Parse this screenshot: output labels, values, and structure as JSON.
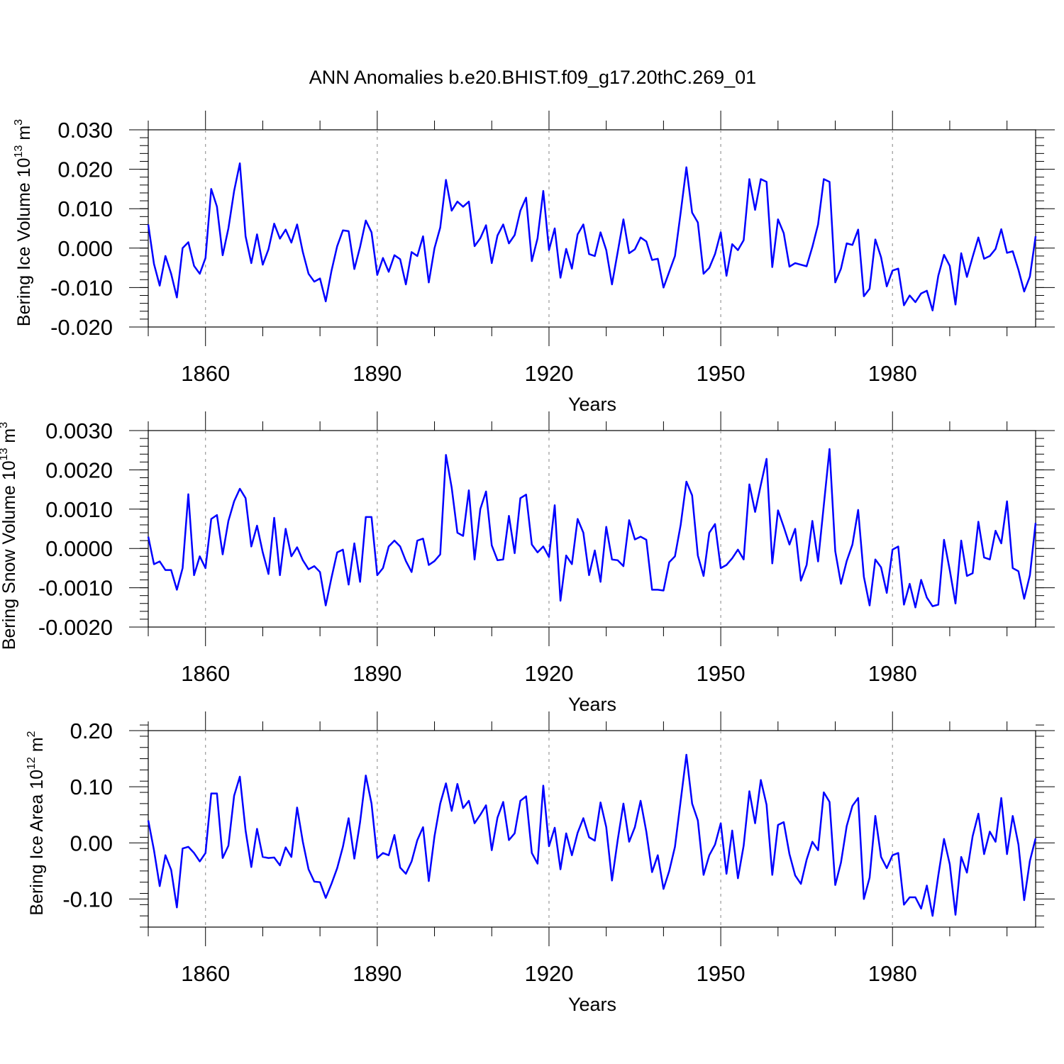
{
  "title": "ANN Anomalies b.e20.BHIST.f09_g17.20thC.269_01",
  "line_color": "#0000ff",
  "chart_data": [
    {
      "type": "line",
      "ylabel": "Bering Ice Volume 10",
      "ylabel_sup": "13",
      "ylabel_unit": "m",
      "ylabel_unit_sup": "3",
      "xlabel": "Years",
      "xlim": [
        1850,
        2005
      ],
      "ylim": [
        -0.02,
        0.03
      ],
      "major_ticks": [
        -0.02,
        -0.01,
        0.0,
        0.01,
        0.02,
        0.03
      ],
      "tick_labels": [
        "-0.020",
        "-0.010",
        "0.000",
        "0.010",
        "0.020",
        "0.030"
      ],
      "minor_step": 0.002,
      "x_ticks": [
        1860,
        1890,
        1920,
        1950,
        1980
      ],
      "x_tick_labels": [
        "1860",
        "1890",
        "1920",
        "1950",
        "1980"
      ],
      "x_start": 1850,
      "values": [
        0.006,
        -0.004,
        -0.0095,
        -0.002,
        -0.0065,
        -0.0125,
        0.0,
        0.0015,
        -0.0045,
        -0.0065,
        -0.0025,
        0.015,
        0.0105,
        -0.0018,
        0.005,
        0.0145,
        0.0215,
        0.003,
        -0.0038,
        0.0035,
        -0.0042,
        -0.0003,
        0.0062,
        0.0024,
        0.0047,
        0.0014,
        0.006,
        -0.001,
        -0.0065,
        -0.0085,
        -0.0077,
        -0.0135,
        -0.0058,
        0.0005,
        0.0045,
        0.0043,
        -0.0053,
        0.0003,
        0.007,
        0.004,
        -0.0068,
        -0.0025,
        -0.006,
        -0.0018,
        -0.0028,
        -0.0092,
        -0.001,
        -0.002,
        0.003,
        -0.0087,
        0.0,
        0.0052,
        0.0173,
        0.0095,
        0.0118,
        0.0105,
        0.0118,
        0.0005,
        0.0025,
        0.0058,
        -0.0038,
        0.0032,
        0.006,
        0.0012,
        0.0033,
        0.0095,
        0.0128,
        -0.0033,
        0.0025,
        0.0145,
        -0.0005,
        0.005,
        -0.0075,
        -0.0002,
        -0.0052,
        0.0035,
        0.006,
        -0.0015,
        -0.002,
        0.004,
        -0.0005,
        -0.0092,
        -0.001,
        0.0073,
        -0.0013,
        -0.0003,
        0.0027,
        0.0017,
        -0.003,
        -0.0027,
        -0.01,
        -0.006,
        -0.002,
        0.009,
        0.0205,
        0.009,
        0.0065,
        -0.0065,
        -0.005,
        -0.0015,
        0.004,
        -0.007,
        0.001,
        -0.0005,
        0.002,
        0.0175,
        0.0097,
        0.0175,
        0.0168,
        -0.0048,
        0.0073,
        0.0038,
        -0.0047,
        -0.0038,
        -0.0042,
        -0.0046,
        0.0003,
        0.006,
        0.0175,
        0.0168,
        -0.0087,
        -0.0052,
        0.0012,
        0.0008,
        0.0047,
        -0.0122,
        -0.0103,
        0.0022,
        -0.0023,
        -0.0097,
        -0.0057,
        -0.0052,
        -0.0145,
        -0.012,
        -0.0137,
        -0.0115,
        -0.0108,
        -0.0158,
        -0.007,
        -0.0017,
        -0.0045,
        -0.0143,
        -0.0013,
        -0.0073,
        -0.0022,
        0.0027,
        -0.0027,
        -0.002,
        -0.0002,
        0.0048,
        -0.0012,
        -0.0008,
        -0.0055,
        -0.011,
        -0.0072,
        0.003
      ]
    },
    {
      "type": "line",
      "ylabel": "Bering Snow Volume 10",
      "ylabel_sup": "13",
      "ylabel_unit": "m",
      "ylabel_unit_sup": "3",
      "xlabel": "Years",
      "xlim": [
        1850,
        2005
      ],
      "ylim": [
        -0.002,
        0.003
      ],
      "major_ticks": [
        -0.002,
        -0.001,
        0.0,
        0.001,
        0.002,
        0.003
      ],
      "tick_labels": [
        "-0.0020",
        "-0.0010",
        "0.0000",
        "0.0010",
        "0.0020",
        "0.0030"
      ],
      "minor_step": 0.0002,
      "x_ticks": [
        1860,
        1890,
        1920,
        1950,
        1980
      ],
      "x_tick_labels": [
        "1860",
        "1890",
        "1920",
        "1950",
        "1980"
      ],
      "x_start": 1850,
      "values": [
        0.0003,
        -0.0004,
        -0.00033,
        -0.00055,
        -0.00055,
        -0.00105,
        -0.0005,
        0.00138,
        -0.00068,
        -0.0002,
        -0.0005,
        0.00075,
        0.00085,
        -0.00015,
        0.0007,
        0.0012,
        0.00152,
        0.00128,
        5e-05,
        0.00058,
        -0.0001,
        -0.00065,
        0.00078,
        -0.00068,
        0.0005,
        -0.0002,
        3e-05,
        -0.0003,
        -0.00053,
        -0.00045,
        -0.0006,
        -0.00145,
        -0.00075,
        -0.0001,
        -3e-05,
        -0.00092,
        0.00013,
        -0.00085,
        0.0008,
        0.0008,
        -0.00068,
        -0.0005,
        5e-05,
        0.0002,
        5e-05,
        -0.00032,
        -0.0006,
        0.0002,
        0.00025,
        -0.00042,
        -0.00032,
        -0.00015,
        0.00238,
        0.00155,
        0.0004,
        0.00032,
        0.00148,
        -0.00028,
        0.001,
        0.00145,
        8e-05,
        -0.0003,
        -0.00028,
        0.00083,
        -0.00012,
        0.00128,
        0.00137,
        0.0001,
        -0.0001,
        5e-05,
        -0.00022,
        0.0011,
        -0.00133,
        -0.00018,
        -0.0004,
        0.00075,
        0.0004,
        -0.00068,
        -5e-05,
        -0.00085,
        0.00055,
        -0.00028,
        -0.0003,
        -0.00045,
        0.00072,
        0.00023,
        0.0003,
        0.00022,
        -0.00105,
        -0.00105,
        -0.00107,
        -0.00035,
        -0.0002,
        0.0006,
        0.0017,
        0.00135,
        -0.00018,
        -0.0007,
        0.0004,
        0.00062,
        -0.0005,
        -0.00042,
        -0.00025,
        -3e-05,
        -0.00028,
        0.00163,
        0.00093,
        0.00162,
        0.00228,
        -0.00038,
        0.00097,
        0.00055,
        0.0001,
        0.0005,
        -0.00082,
        -0.00042,
        0.0007,
        -0.00033,
        0.0011,
        0.00253,
        -7e-05,
        -0.0009,
        -0.00032,
        0.0001,
        0.00098,
        -0.00072,
        -0.00145,
        -0.00028,
        -0.00048,
        -0.00113,
        -3e-05,
        5e-05,
        -0.00143,
        -0.0009,
        -0.0015,
        -0.0008,
        -0.00125,
        -0.00147,
        -0.00143,
        0.00022,
        -0.00055,
        -0.0014,
        0.0002,
        -0.0007,
        -0.00063,
        0.00068,
        -0.00023,
        -0.00028,
        0.00045,
        0.00013,
        0.0012,
        -0.0005,
        -0.00058,
        -0.00128,
        -0.00068,
        0.00065
      ]
    },
    {
      "type": "line",
      "ylabel": "Bering Ice Area 10",
      "ylabel_sup": "12",
      "ylabel_unit": "m",
      "ylabel_unit_sup": "2",
      "xlabel": "Years",
      "xlim": [
        1850,
        2005
      ],
      "ylim": [
        -0.15,
        0.2
      ],
      "major_ticks": [
        -0.1,
        0.0,
        0.1,
        0.2
      ],
      "tick_labels": [
        "-0.10",
        "0.00",
        "0.10",
        "0.20"
      ],
      "minor_step": 0.02,
      "x_ticks": [
        1860,
        1890,
        1920,
        1950,
        1980
      ],
      "x_tick_labels": [
        "1860",
        "1890",
        "1920",
        "1950",
        "1980"
      ],
      "x_start": 1850,
      "values": [
        0.04,
        -0.013,
        -0.077,
        -0.022,
        -0.048,
        -0.115,
        -0.01,
        -0.007,
        -0.018,
        -0.033,
        -0.018,
        0.088,
        0.088,
        -0.027,
        -0.005,
        0.084,
        0.118,
        0.022,
        -0.043,
        0.025,
        -0.025,
        -0.027,
        -0.026,
        -0.04,
        -0.008,
        -0.025,
        0.063,
        0.002,
        -0.047,
        -0.069,
        -0.07,
        -0.098,
        -0.073,
        -0.045,
        -0.007,
        0.044,
        -0.028,
        0.037,
        0.12,
        0.07,
        -0.027,
        -0.018,
        -0.022,
        0.014,
        -0.044,
        -0.055,
        -0.033,
        0.005,
        0.028,
        -0.068,
        0.012,
        0.07,
        0.106,
        0.057,
        0.105,
        0.062,
        0.075,
        0.035,
        0.05,
        0.067,
        -0.013,
        0.045,
        0.073,
        0.005,
        0.017,
        0.075,
        0.083,
        -0.018,
        -0.037,
        0.102,
        -0.006,
        0.027,
        -0.047,
        0.017,
        -0.022,
        0.018,
        0.044,
        0.01,
        0.004,
        0.072,
        0.028,
        -0.067,
        0.005,
        0.07,
        0.002,
        0.028,
        0.075,
        0.02,
        -0.052,
        -0.022,
        -0.082,
        -0.05,
        -0.007,
        0.075,
        0.157,
        0.07,
        0.04,
        -0.057,
        -0.022,
        -0.003,
        0.035,
        -0.055,
        0.022,
        -0.063,
        -0.005,
        0.092,
        0.035,
        0.112,
        0.068,
        -0.057,
        0.032,
        0.037,
        -0.02,
        -0.058,
        -0.073,
        -0.03,
        0.002,
        -0.013,
        0.09,
        0.073,
        -0.075,
        -0.035,
        0.03,
        0.066,
        0.08,
        -0.1,
        -0.062,
        0.048,
        -0.025,
        -0.045,
        -0.022,
        -0.018,
        -0.11,
        -0.097,
        -0.097,
        -0.117,
        -0.076,
        -0.13,
        -0.058,
        0.007,
        -0.038,
        -0.128,
        -0.025,
        -0.053,
        0.012,
        0.052,
        -0.02,
        0.02,
        0.002,
        0.08,
        -0.02,
        0.048,
        -0.003,
        -0.102,
        -0.032,
        0.008
      ]
    }
  ]
}
